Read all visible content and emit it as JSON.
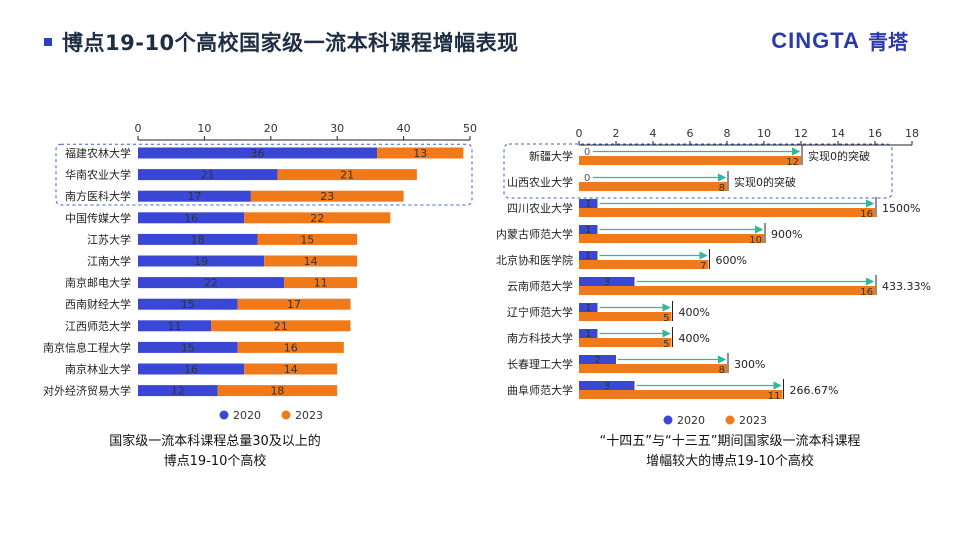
{
  "header": {
    "title": "博点19-10个高校国家级一流本科课程增幅表现",
    "brand_name": "CINGTA",
    "brand_cn": "青塔",
    "colors": {
      "accent": "#2f3fbf",
      "series_2020": "#3a47d5",
      "series_2023": "#f07a1a",
      "arrow": "#2fb89a"
    }
  },
  "captions": {
    "left": [
      "国家级一流本科课程总量30及以上的",
      "博点19-10个高校"
    ],
    "right": [
      "“十四五”与“十三五”期间国家级一流本科课程",
      "增幅较大的博点19-10个高校"
    ]
  },
  "chart_data": [
    {
      "type": "bar",
      "stacked": true,
      "orientation": "horizontal",
      "categories": [
        "福建农林大学",
        "华南农业大学",
        "南方医科大学",
        "中国传媒大学",
        "江苏大学",
        "江南大学",
        "南京邮电大学",
        "西南财经大学",
        "江西师范大学",
        "南京信息工程大学",
        "南京林业大学",
        "对外经济贸易大学"
      ],
      "series": [
        {
          "name": "2020",
          "values": [
            36,
            21,
            17,
            16,
            18,
            19,
            22,
            15,
            11,
            15,
            16,
            12
          ]
        },
        {
          "name": "2023",
          "values": [
            13,
            21,
            23,
            22,
            15,
            14,
            11,
            17,
            21,
            16,
            14,
            18
          ]
        }
      ],
      "xlim": [
        0,
        50
      ],
      "xticks": [
        "0",
        "10",
        "20",
        "30",
        "40",
        "50"
      ],
      "highlight_rows": [
        0,
        1,
        2
      ],
      "legend": [
        "2020",
        "2023"
      ]
    },
    {
      "type": "bar",
      "orientation": "horizontal",
      "categories": [
        "新疆大学",
        "山西农业大学",
        "四川农业大学",
        "内蒙古师范大学",
        "北京协和医学院",
        "云南师范大学",
        "辽宁师范大学",
        "南方科技大学",
        "长春理工大学",
        "曲阜师范大学"
      ],
      "series": [
        {
          "name": "2020",
          "values": [
            0,
            0,
            1,
            1,
            1,
            3,
            1,
            1,
            2,
            3
          ]
        },
        {
          "name": "2023",
          "values": [
            12,
            8,
            16,
            10,
            7,
            16,
            5,
            5,
            8,
            11
          ]
        }
      ],
      "annotations": [
        "实现0的突破",
        "实现0的突破",
        "1500%",
        "900%",
        "600%",
        "433.33%",
        "400%",
        "400%",
        "300%",
        "266.67%"
      ],
      "xlim": [
        0,
        18
      ],
      "xticks": [
        "0",
        "2",
        "4",
        "6",
        "8",
        "10",
        "12",
        "14",
        "16",
        "18"
      ],
      "highlight_rows": [
        0,
        1
      ],
      "legend": [
        "2020",
        "2023"
      ]
    }
  ]
}
